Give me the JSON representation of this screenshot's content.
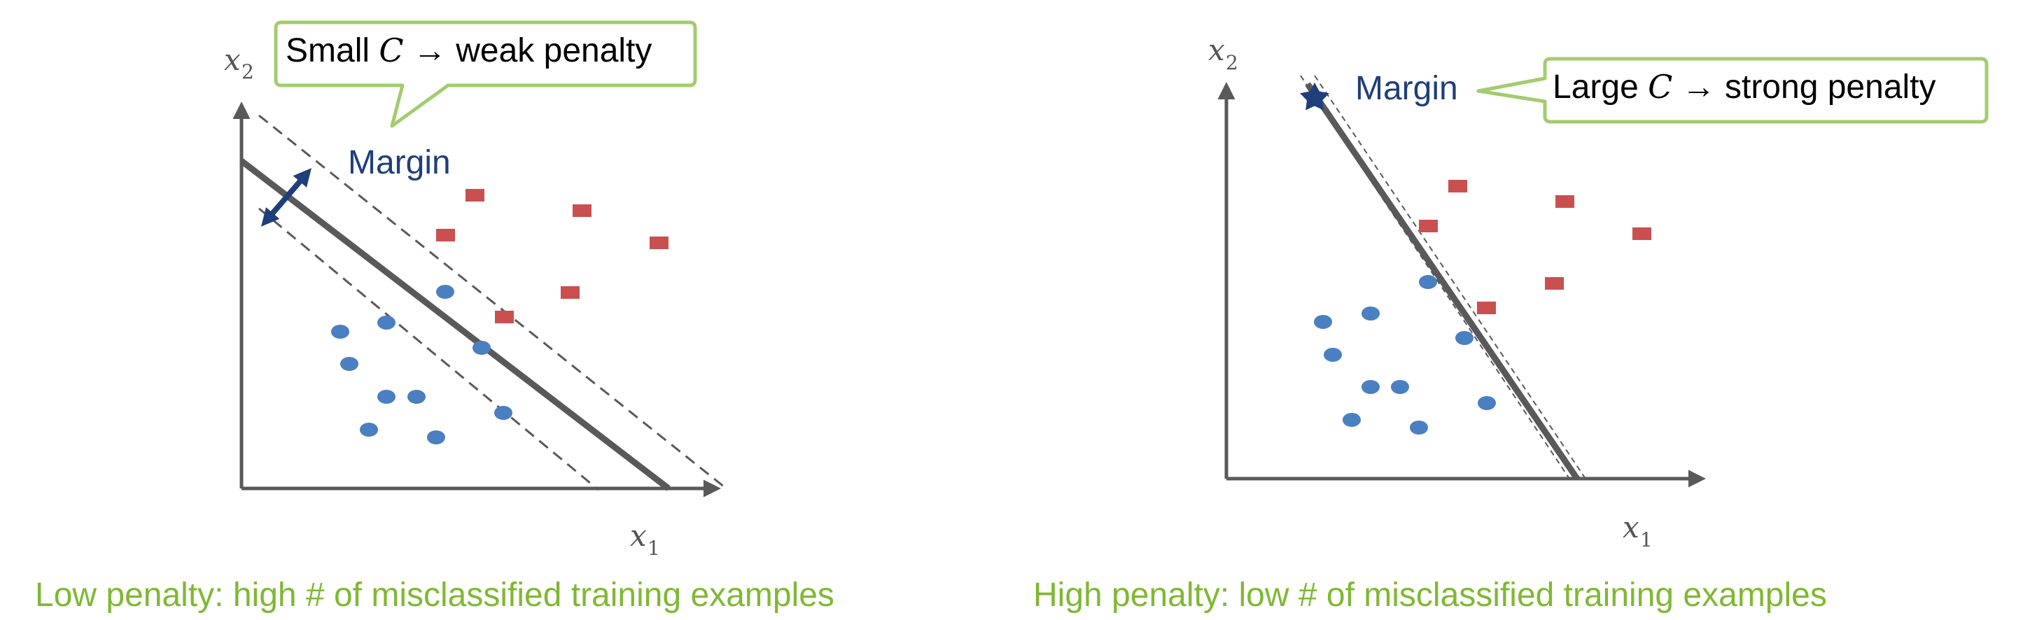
{
  "colors": {
    "accent_green": "#7fb833",
    "callout_border": "#a3cc6e",
    "class_a_points": "#4a7fc1",
    "class_b_points": "#c9504f",
    "decision_line": "#595959",
    "margin_label": "#1f3f7a",
    "axis": "#595959"
  },
  "left_panel": {
    "callout": {
      "prefix": "Small ",
      "var": "C",
      "suffix": " → weak penalty"
    },
    "margin_label": "Margin",
    "axis_x": {
      "var": "x",
      "sub": "1"
    },
    "axis_y": {
      "var": "x",
      "sub": "2"
    },
    "caption": "Low penalty: high # of misclassified training examples",
    "margin_icon": "double-arrow-icon"
  },
  "right_panel": {
    "callout": {
      "prefix": "Large ",
      "var": "C",
      "suffix": " → strong penalty"
    },
    "margin_label": "Margin",
    "axis_x": {
      "var": "x",
      "sub": "1"
    },
    "axis_y": {
      "var": "x",
      "sub": "2"
    },
    "caption": "High penalty: low # of misclassified training examples",
    "margin_icon": "star-icon"
  }
}
